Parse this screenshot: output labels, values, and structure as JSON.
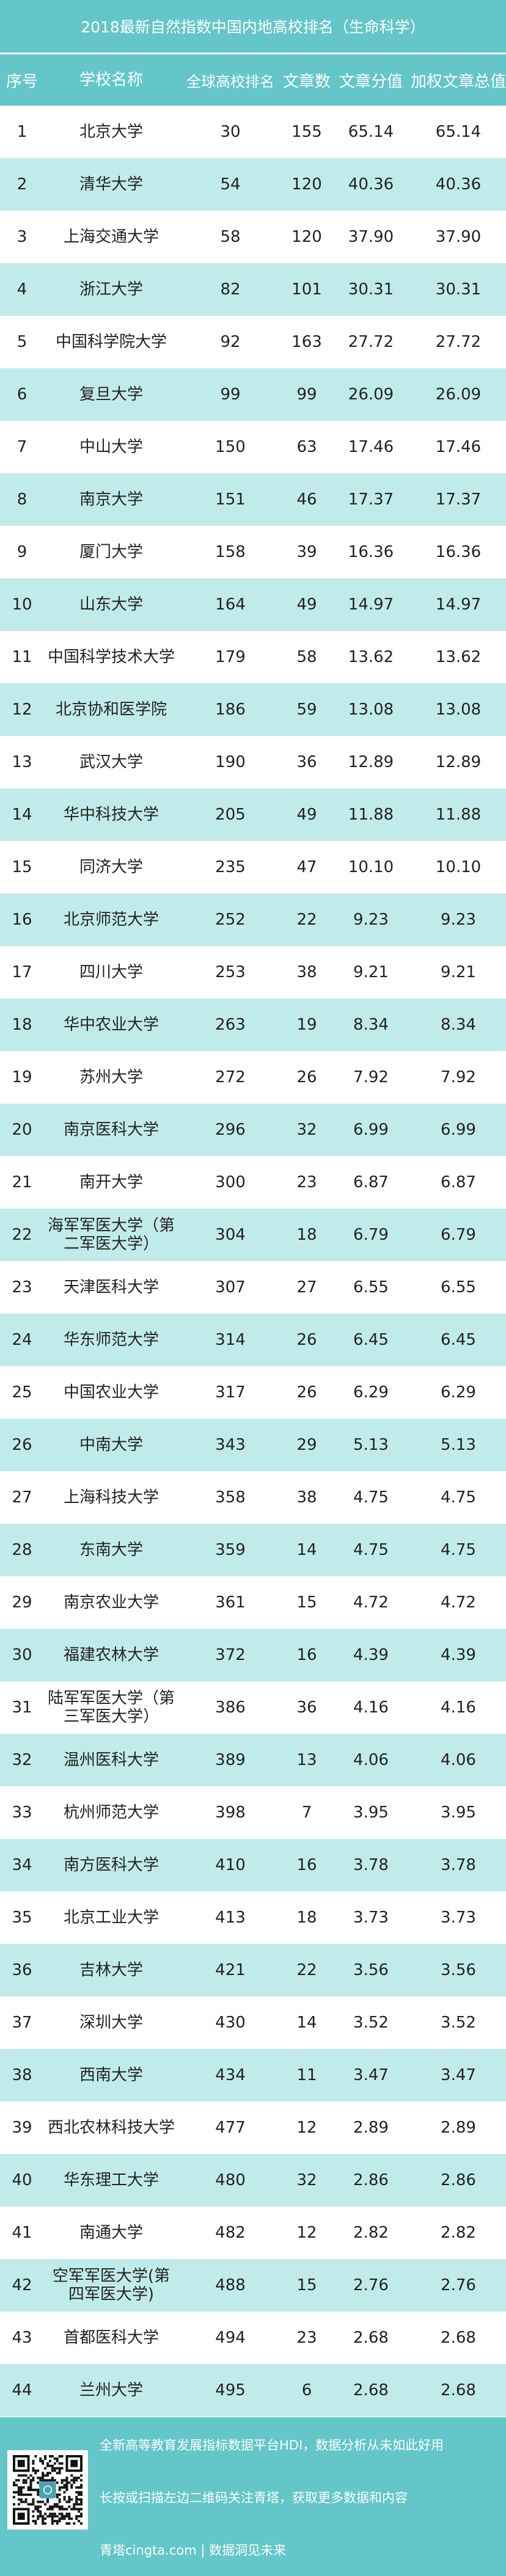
{
  "title": "2018最新自然指数中国内地高校排名（生命科学）",
  "colors": {
    "header": "#64c6c9",
    "row_alt": "#c1ebea",
    "row": "#ffffff"
  },
  "columns": [
    "序号",
    "学校名称",
    "全球高校排名",
    "文章数",
    "文章分值",
    "加权文章总值"
  ],
  "rows": [
    [
      "1",
      "北京大学",
      "30",
      "155",
      "65.14",
      "65.14"
    ],
    [
      "2",
      "清华大学",
      "54",
      "120",
      "40.36",
      "40.36"
    ],
    [
      "3",
      "上海交通大学",
      "58",
      "120",
      "37.90",
      "37.90"
    ],
    [
      "4",
      "浙江大学",
      "82",
      "101",
      "30.31",
      "30.31"
    ],
    [
      "5",
      "中国科学院大学",
      "92",
      "163",
      "27.72",
      "27.72"
    ],
    [
      "6",
      "复旦大学",
      "99",
      "99",
      "26.09",
      "26.09"
    ],
    [
      "7",
      "中山大学",
      "150",
      "63",
      "17.46",
      "17.46"
    ],
    [
      "8",
      "南京大学",
      "151",
      "46",
      "17.37",
      "17.37"
    ],
    [
      "9",
      "厦门大学",
      "158",
      "39",
      "16.36",
      "16.36"
    ],
    [
      "10",
      "山东大学",
      "164",
      "49",
      "14.97",
      "14.97"
    ],
    [
      "11",
      "中国科学技术大学",
      "179",
      "58",
      "13.62",
      "13.62"
    ],
    [
      "12",
      "北京协和医学院",
      "186",
      "59",
      "13.08",
      "13.08"
    ],
    [
      "13",
      "武汉大学",
      "190",
      "36",
      "12.89",
      "12.89"
    ],
    [
      "14",
      "华中科技大学",
      "205",
      "49",
      "11.88",
      "11.88"
    ],
    [
      "15",
      "同济大学",
      "235",
      "47",
      "10.10",
      "10.10"
    ],
    [
      "16",
      "北京师范大学",
      "252",
      "22",
      "9.23",
      "9.23"
    ],
    [
      "17",
      "四川大学",
      "253",
      "38",
      "9.21",
      "9.21"
    ],
    [
      "18",
      "华中农业大学",
      "263",
      "19",
      "8.34",
      "8.34"
    ],
    [
      "19",
      "苏州大学",
      "272",
      "26",
      "7.92",
      "7.92"
    ],
    [
      "20",
      "南京医科大学",
      "296",
      "32",
      "6.99",
      "6.99"
    ],
    [
      "21",
      "南开大学",
      "300",
      "23",
      "6.87",
      "6.87"
    ],
    [
      "22",
      "海军军医大学（第二军医大学）",
      "304",
      "18",
      "6.79",
      "6.79"
    ],
    [
      "23",
      "天津医科大学",
      "307",
      "27",
      "6.55",
      "6.55"
    ],
    [
      "24",
      "华东师范大学",
      "314",
      "26",
      "6.45",
      "6.45"
    ],
    [
      "25",
      "中国农业大学",
      "317",
      "26",
      "6.29",
      "6.29"
    ],
    [
      "26",
      "中南大学",
      "343",
      "29",
      "5.13",
      "5.13"
    ],
    [
      "27",
      "上海科技大学",
      "358",
      "38",
      "4.75",
      "4.75"
    ],
    [
      "28",
      "东南大学",
      "359",
      "14",
      "4.75",
      "4.75"
    ],
    [
      "29",
      "南京农业大学",
      "361",
      "15",
      "4.72",
      "4.72"
    ],
    [
      "30",
      "福建农林大学",
      "372",
      "16",
      "4.39",
      "4.39"
    ],
    [
      "31",
      "陆军军医大学（第三军医大学）",
      "386",
      "36",
      "4.16",
      "4.16"
    ],
    [
      "32",
      "温州医科大学",
      "389",
      "13",
      "4.06",
      "4.06"
    ],
    [
      "33",
      "杭州师范大学",
      "398",
      "7",
      "3.95",
      "3.95"
    ],
    [
      "34",
      "南方医科大学",
      "410",
      "16",
      "3.78",
      "3.78"
    ],
    [
      "35",
      "北京工业大学",
      "413",
      "18",
      "3.73",
      "3.73"
    ],
    [
      "36",
      "吉林大学",
      "421",
      "22",
      "3.56",
      "3.56"
    ],
    [
      "37",
      "深圳大学",
      "430",
      "14",
      "3.52",
      "3.52"
    ],
    [
      "38",
      "西南大学",
      "434",
      "11",
      "3.47",
      "3.47"
    ],
    [
      "39",
      "西北农林科技大学",
      "477",
      "12",
      "2.89",
      "2.89"
    ],
    [
      "40",
      "华东理工大学",
      "480",
      "32",
      "2.86",
      "2.86"
    ],
    [
      "41",
      "南通大学",
      "482",
      "12",
      "2.82",
      "2.82"
    ],
    [
      "42",
      "空军军医大学(第四军医大学)",
      "488",
      "15",
      "2.76",
      "2.76"
    ],
    [
      "43",
      "首都医科大学",
      "494",
      "23",
      "2.68",
      "2.68"
    ],
    [
      "44",
      "兰州大学",
      "495",
      "6",
      "2.68",
      "2.68"
    ]
  ],
  "footer": {
    "line1": "全新高等教育发展指标数据平台HDI，数据分析从未如此好用",
    "line2": "长按或扫描左边二维码关注青塔，获取更多数据和内容",
    "line3": "青塔cingta.com | 数据洞见未来",
    "qr_icon": "qr-code-icon"
  }
}
